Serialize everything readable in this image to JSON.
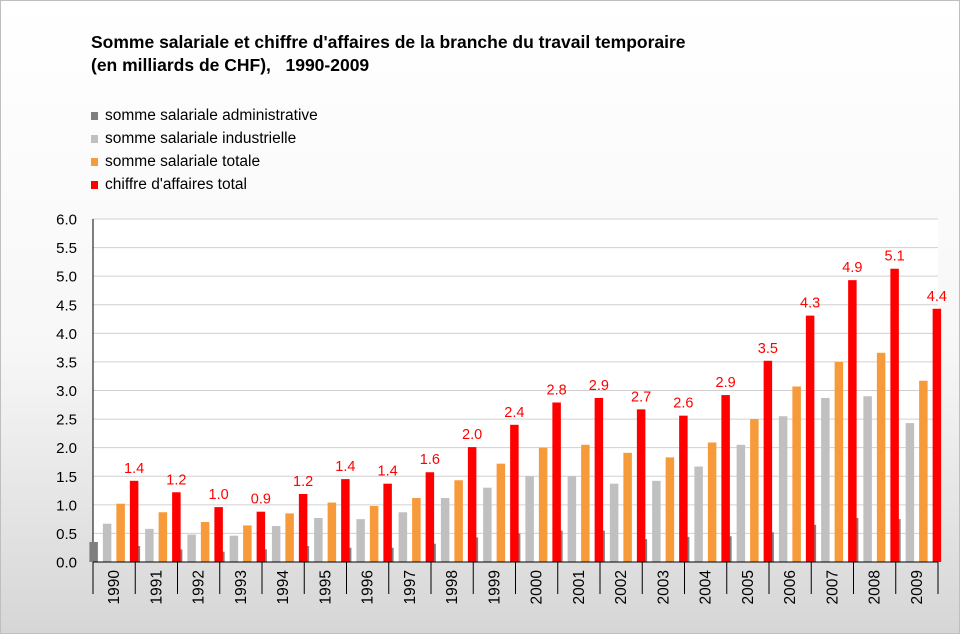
{
  "title": {
    "line1": "Somme salariale et chiffre d'affaires de la branche du travail temporaire",
    "line2": "(en milliards de CHF),   1990-2009"
  },
  "legend": [
    {
      "label": "somme salariale administrative",
      "color": "#7f7f7f"
    },
    {
      "label": "somme salariale industrielle",
      "color": "#c0c0c0"
    },
    {
      "label": "somme salariale totale",
      "color": "#f79a3a"
    },
    {
      "label": "chiffre d'affaires total",
      "color": "#ff0000"
    }
  ],
  "chart_data": {
    "type": "bar",
    "title": "Somme salariale et chiffre d'affaires de la branche du travail temporaire (en milliards de CHF),   1990-2009",
    "categories": [
      "1990",
      "1991",
      "1992",
      "1993",
      "1994",
      "1995",
      "1996",
      "1997",
      "1998",
      "1999",
      "2000",
      "2001",
      "2002",
      "2003",
      "2004",
      "2005",
      "2006",
      "2007",
      "2008",
      "2009"
    ],
    "series": [
      {
        "name": "somme salariale administrative",
        "color": "#7f7f7f",
        "values": [
          0.35,
          0.28,
          0.22,
          0.18,
          0.22,
          0.28,
          0.25,
          0.25,
          0.32,
          0.43,
          0.5,
          0.55,
          0.55,
          0.4,
          0.44,
          0.45,
          0.52,
          0.65,
          0.77,
          0.75
        ]
      },
      {
        "name": "somme salariale industrielle",
        "color": "#c0c0c0",
        "values": [
          0.67,
          0.58,
          0.48,
          0.46,
          0.63,
          0.77,
          0.75,
          0.87,
          1.12,
          1.3,
          1.5,
          1.5,
          1.37,
          1.42,
          1.67,
          2.05,
          2.55,
          2.87,
          2.9,
          2.43
        ]
      },
      {
        "name": "somme salariale totale",
        "color": "#f79a3a",
        "values": [
          1.02,
          0.87,
          0.7,
          0.64,
          0.85,
          1.04,
          0.98,
          1.12,
          1.43,
          1.72,
          2.0,
          2.05,
          1.91,
          1.83,
          2.09,
          2.5,
          3.07,
          3.5,
          3.66,
          3.17
        ]
      },
      {
        "name": "chiffre d'affaires total",
        "color": "#ff0000",
        "values": [
          1.42,
          1.22,
          0.96,
          0.88,
          1.19,
          1.45,
          1.37,
          1.57,
          2.01,
          2.4,
          2.79,
          2.87,
          2.67,
          2.56,
          2.92,
          3.52,
          4.31,
          4.93,
          5.13,
          4.43
        ],
        "data_labels": [
          "1.4",
          "1.2",
          "1.0",
          "0.9",
          "1.2",
          "1.4",
          "1.4",
          "1.6",
          "2.0",
          "2.4",
          "2.8",
          "2.9",
          "2.7",
          "2.6",
          "2.9",
          "3.5",
          "4.3",
          "4.9",
          "5.1",
          "4.4"
        ]
      }
    ],
    "y_ticks": [
      "0.0",
      "0.5",
      "1.0",
      "1.5",
      "2.0",
      "2.5",
      "3.0",
      "3.5",
      "4.0",
      "4.5",
      "5.0",
      "5.5",
      "6.0"
    ],
    "ylim": [
      0,
      6
    ],
    "grid": true,
    "legend_position": "top-left",
    "label_color": "#ff0000"
  }
}
